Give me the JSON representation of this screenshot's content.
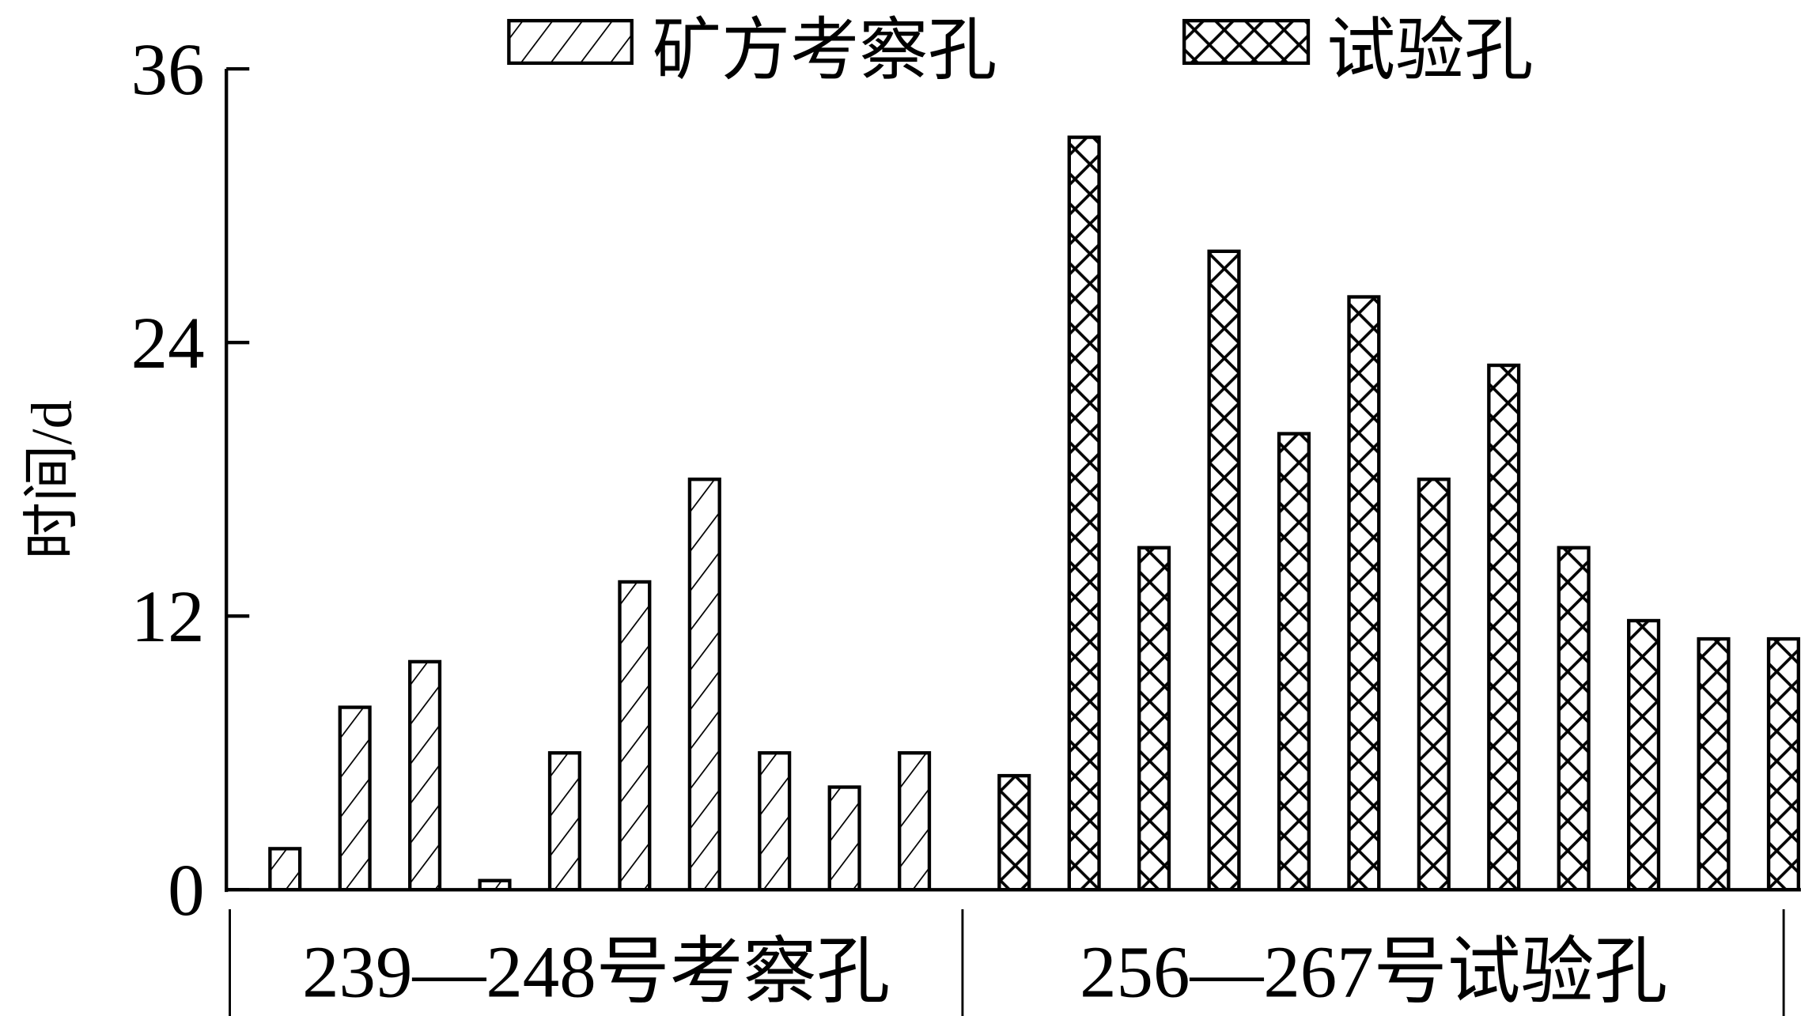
{
  "chart_data": {
    "type": "bar",
    "ylabel": "时间/d",
    "ylim": [
      0,
      36
    ],
    "yticks": [
      0,
      12,
      24,
      36
    ],
    "grid": false,
    "legend_position": "top",
    "groups": [
      "239—248号考察孔",
      "256—267号试验孔"
    ],
    "series": [
      {
        "name": "矿方考察孔",
        "pattern": "diagonal-hatch",
        "values": [
          1.8,
          8,
          10,
          0.4,
          6,
          13.5,
          18,
          6,
          4.5,
          6
        ]
      },
      {
        "name": "试验孔",
        "pattern": "cross-hatch",
        "values": [
          5,
          33,
          15,
          28,
          20,
          26,
          18,
          23,
          15,
          11.8,
          11,
          11
        ]
      }
    ]
  }
}
